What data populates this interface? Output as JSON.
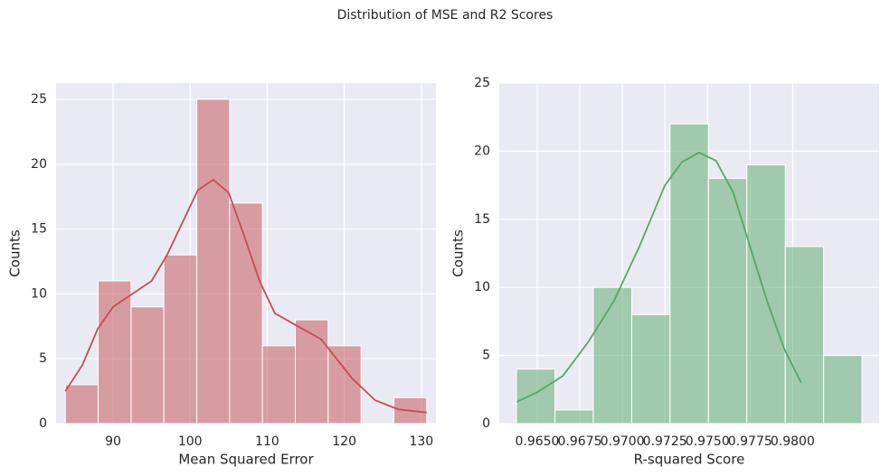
{
  "suptitle": "Distribution of MSE and R2 Scores",
  "chart_data": [
    {
      "type": "histogram",
      "xlabel": "Mean Squared Error",
      "ylabel": "Counts",
      "color": "#c44e52",
      "grid": true,
      "bins": [
        83.8,
        88.06,
        92.33,
        96.59,
        100.86,
        105.12,
        109.38,
        113.65,
        117.91,
        122.18,
        126.44,
        130.7
      ],
      "values": [
        3,
        11,
        9,
        13,
        25,
        17,
        6,
        8,
        6,
        0,
        2
      ],
      "kde": {
        "x": [
          83.8,
          86,
          88,
          90,
          92,
          95,
          97,
          99,
          101,
          103,
          105,
          107,
          109,
          111,
          114,
          117,
          119,
          121,
          124,
          127,
          130.7
        ],
        "y": [
          2.5,
          4.5,
          7.3,
          9,
          9.8,
          11,
          13,
          15.5,
          18,
          18.8,
          17.8,
          14.5,
          11,
          8.5,
          7.5,
          6.5,
          5,
          3.5,
          1.8,
          1.1,
          0.85
        ]
      },
      "xlim": [
        82.6,
        131.9
      ],
      "xticks": [
        90,
        100,
        110,
        120,
        130
      ],
      "ylim": [
        0,
        26.25
      ],
      "yticks": [
        0,
        5,
        10,
        15,
        20,
        25
      ]
    },
    {
      "type": "histogram",
      "xlabel": "R-squared Score",
      "ylabel": "Counts",
      "color": "#55a868",
      "grid": true,
      "bins": [
        0.96378,
        0.96604,
        0.96829,
        0.97055,
        0.9728,
        0.97506,
        0.97731,
        0.97957,
        0.98182,
        0.98407
      ],
      "values": [
        4,
        1,
        10,
        8,
        22,
        18,
        19,
        13,
        5
      ],
      "kde": {
        "x": [
          0.9638,
          0.965,
          0.9665,
          0.968,
          0.9695,
          0.971,
          0.9725,
          0.9735,
          0.9745,
          0.9755,
          0.9765,
          0.9775,
          0.9785,
          0.9795,
          0.9805
        ],
        "y": [
          1.6,
          2.3,
          3.5,
          6,
          9,
          13,
          17.5,
          19.2,
          19.9,
          19.3,
          17,
          13,
          9,
          5.5,
          3
        ]
      },
      "xlim": [
        0.96277,
        0.98508
      ],
      "xticks": [
        {
          "value": 0.965,
          "label": "0.9650"
        },
        {
          "value": 0.9675,
          "label": "0.9675"
        },
        {
          "value": 0.97,
          "label": "0.9700"
        },
        {
          "value": 0.9725,
          "label": "0.9725"
        },
        {
          "value": 0.975,
          "label": "0.9750"
        },
        {
          "value": 0.9775,
          "label": "0.9775"
        },
        {
          "value": 0.98,
          "label": "0.9800"
        }
      ],
      "ylim": [
        0,
        25
      ],
      "yticks": [
        0,
        5,
        10,
        15,
        20,
        25
      ]
    }
  ]
}
